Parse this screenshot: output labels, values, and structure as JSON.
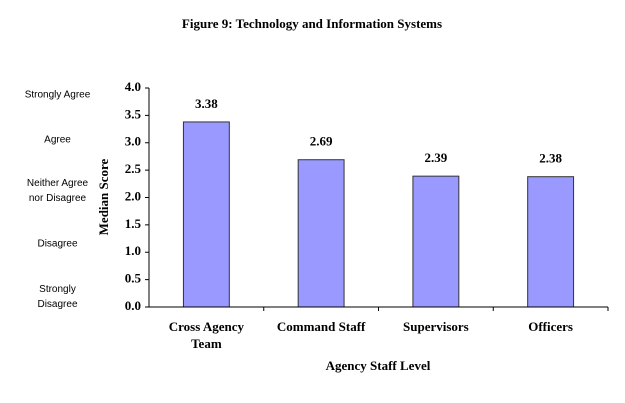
{
  "chart_data": {
    "type": "bar",
    "title": "Figure 9: Technology and Information Systems",
    "x_label": "Agency Staff Level",
    "y_label": "Median Score",
    "scale_labels": [
      "Strongly Agree",
      "Agree",
      "Neither Agree nor Disagree",
      "Disagree",
      "Strongly Disagree"
    ],
    "categories": [
      "Cross Agency Team",
      "Command Staff",
      "Supervisors",
      "Officers"
    ],
    "values": [
      3.38,
      2.69,
      2.39,
      2.38
    ],
    "color": "#9999ff",
    "ylim": [
      0,
      4
    ],
    "yticks": [
      {
        "value": 0,
        "label": "0.0"
      },
      {
        "value": 0.5,
        "label": "0.5"
      },
      {
        "value": 1,
        "label": "1.0"
      },
      {
        "value": 1.5,
        "label": "1.5"
      },
      {
        "value": 2,
        "label": "2.0"
      },
      {
        "value": 2.5,
        "label": "2.5"
      },
      {
        "value": 3,
        "label": "3.0"
      },
      {
        "value": 3.5,
        "label": "3.5"
      },
      {
        "value": 4,
        "label": "4.0"
      }
    ],
    "grid": false
  }
}
